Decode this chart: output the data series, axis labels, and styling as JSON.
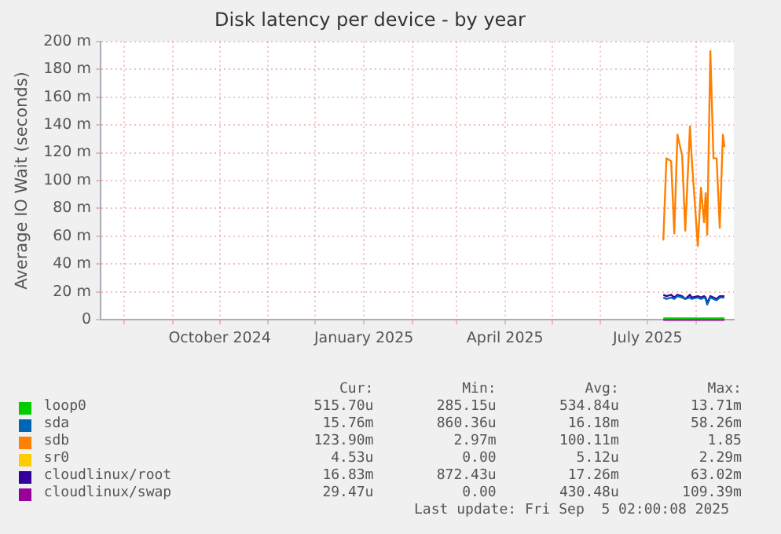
{
  "chart_data": {
    "type": "line",
    "title": "Disk latency per device - by year",
    "ylabel": "Average IO Wait (seconds)",
    "x": [
      "2025-07-11",
      "2025-07-13",
      "2025-07-16",
      "2025-07-18",
      "2025-07-20",
      "2025-07-23",
      "2025-07-25",
      "2025-07-28",
      "2025-07-29",
      "2025-08-02",
      "2025-08-04",
      "2025-08-06",
      "2025-08-07",
      "2025-08-08",
      "2025-08-10",
      "2025-08-12",
      "2025-08-14",
      "2025-08-16",
      "2025-08-18",
      "2025-08-19"
    ],
    "series": [
      {
        "name": "loop0",
        "color": "#00cc00",
        "values": [
          1,
          1,
          1,
          1,
          1,
          1,
          1,
          1,
          1,
          1,
          1,
          1,
          1,
          1,
          1,
          1,
          1,
          1,
          1,
          1
        ]
      },
      {
        "name": "sda",
        "color": "#0066b3",
        "values": [
          16,
          15,
          16,
          15,
          17,
          16,
          15,
          16,
          15,
          16,
          15,
          16,
          15,
          11,
          16,
          15,
          14,
          16,
          16,
          16
        ]
      },
      {
        "name": "sdb",
        "color": "#ff8000",
        "values": [
          57,
          116,
          114,
          62,
          133,
          118,
          64,
          139,
          118,
          53,
          95,
          70,
          91,
          61,
          193,
          116,
          116,
          66,
          133,
          124
        ]
      },
      {
        "name": "sr0",
        "color": "#ffcc00",
        "values": [
          null,
          null,
          null,
          null,
          null,
          null,
          null,
          null,
          null,
          null,
          null,
          null,
          null,
          null,
          null,
          null,
          null,
          null,
          null,
          null
        ]
      },
      {
        "name": "cloudlinux/root",
        "color": "#330099",
        "values": [
          18,
          17,
          18,
          16,
          18,
          17,
          15,
          18,
          16,
          17,
          16,
          17,
          16,
          12,
          17,
          16,
          15,
          17,
          17,
          17
        ]
      },
      {
        "name": "cloudlinux/swap",
        "color": "#990099",
        "values": [
          0,
          0,
          0,
          0,
          0,
          0,
          0,
          0,
          0,
          0,
          0,
          0,
          0,
          0,
          0,
          0,
          0,
          0,
          0,
          0
        ]
      }
    ],
    "xlim": [
      "2024-07-17",
      "2025-08-25"
    ],
    "xticks": [
      {
        "value": "2024-08-01",
        "label": null
      },
      {
        "value": "2024-09-01",
        "label": null
      },
      {
        "value": "2024-10-01",
        "label": "October 2024"
      },
      {
        "value": "2024-11-01",
        "label": null
      },
      {
        "value": "2024-12-01",
        "label": null
      },
      {
        "value": "2025-01-01",
        "label": "January 2025"
      },
      {
        "value": "2025-02-01",
        "label": null
      },
      {
        "value": "2025-03-01",
        "label": null
      },
      {
        "value": "2025-04-01",
        "label": "April 2025"
      },
      {
        "value": "2025-05-01",
        "label": null
      },
      {
        "value": "2025-06-01",
        "label": null
      },
      {
        "value": "2025-07-01",
        "label": "July 2025"
      },
      {
        "value": "2025-08-01",
        "label": null
      }
    ],
    "ylim": [
      0,
      200
    ],
    "yticks": [
      0,
      {
        "value": 20,
        "label": "20 m"
      },
      {
        "value": 40,
        "label": "40 m"
      },
      {
        "value": 60,
        "label": "60 m"
      },
      {
        "value": 80,
        "label": "80 m"
      },
      {
        "value": 100,
        "label": "100 m"
      },
      {
        "value": 120,
        "label": "120 m"
      },
      {
        "value": 140,
        "label": "140 m"
      },
      {
        "value": 160,
        "label": "160 m"
      },
      {
        "value": 180,
        "label": "180 m"
      },
      {
        "value": 200,
        "label": "200 m"
      }
    ],
    "grid": true,
    "legend": "bottom",
    "marker": "none",
    "line_style": "solid",
    "annotations": [
      "Cur:",
      "Min:",
      "Avg:",
      "Max:",
      "515.70u",
      "285.15u",
      "534.84u",
      "13.71m",
      "15.76m",
      "860.36u",
      "16.18m",
      "58.26m",
      "123.90m",
      "2.97m",
      "100.11m",
      "1.85",
      "4.53u",
      "0.00",
      "5.12u",
      "2.29m",
      "16.83m",
      "872.43u",
      "17.26m",
      "63.02m",
      "29.47u",
      "0.00",
      "430.48u",
      "109.39m",
      "Last update: Fri Sep  5 02:00:08 2025"
    ]
  }
}
